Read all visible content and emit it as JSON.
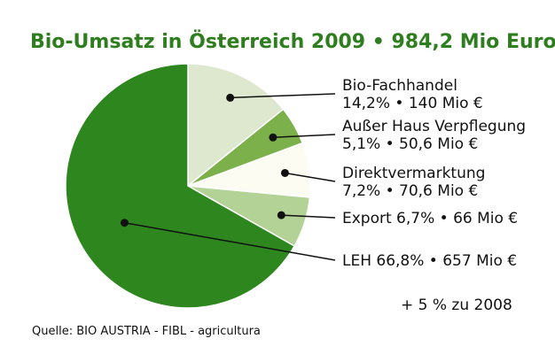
{
  "chart_data": {
    "type": "pie",
    "title": "Bio-Umsatz in Österreich 2009 • 984,2 Mio Euro",
    "slices": [
      {
        "label_lines": [
          "Bio-Fachhandel",
          "14,2% • 140 Mio €"
        ],
        "percent": 14.2,
        "value": 140,
        "color": "#dde8cf"
      },
      {
        "label_lines": [
          "Außer Haus Verpflegung",
          "5,1% • 50,6 Mio €"
        ],
        "percent": 5.1,
        "value": 50.6,
        "color": "#7bb04a"
      },
      {
        "label_lines": [
          "Direktvermarktung",
          "7,2% • 70,6 Mio €"
        ],
        "percent": 7.2,
        "value": 70.6,
        "color": "#fcfcf2"
      },
      {
        "label_lines": [
          "Export 6,7% • 66 Mio €"
        ],
        "percent": 6.7,
        "value": 66,
        "color": "#b3d296"
      },
      {
        "label_lines": [
          "LEH 66,8% • 657 Mio €"
        ],
        "percent": 66.8,
        "value": 657,
        "color": "#2e861f"
      }
    ],
    "note": "+ 5 % zu 2008",
    "source": "Quelle: BIO AUSTRIA - FIBL - agricultura"
  }
}
